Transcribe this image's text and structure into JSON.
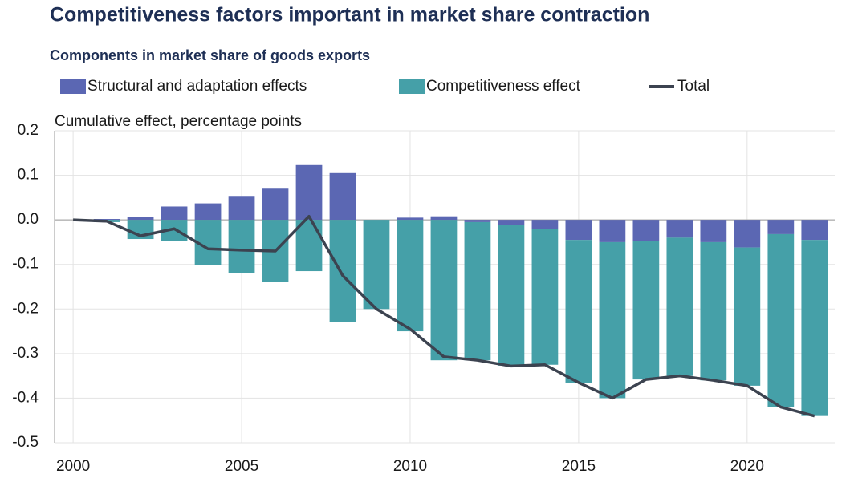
{
  "chart_data": {
    "type": "bar",
    "stacked": true,
    "title": "Competitiveness factors important in market share contraction",
    "subtitle": "Components in market share of goods exports",
    "y_label": "Cumulative effect, percentage points",
    "x": [
      2000,
      2001,
      2002,
      2003,
      2004,
      2005,
      2006,
      2007,
      2008,
      2009,
      2010,
      2011,
      2012,
      2013,
      2014,
      2015,
      2016,
      2017,
      2018,
      2019,
      2020,
      2021,
      2022
    ],
    "series": [
      {
        "name": "Structural and adaptation effects",
        "type": "bar",
        "color": "#5b67b3",
        "values": [
          0,
          0.002,
          0.007,
          0.03,
          0.037,
          0.052,
          0.07,
          0.123,
          0.105,
          0,
          0.005,
          0.008,
          -0.005,
          -0.012,
          -0.02,
          -0.045,
          -0.05,
          -0.048,
          -0.04,
          -0.05,
          -0.062,
          -0.032,
          -0.045
        ]
      },
      {
        "name": "Competitiveness effect",
        "type": "bar",
        "color": "#45a0a8",
        "values": [
          0,
          -0.005,
          -0.043,
          -0.048,
          -0.102,
          -0.12,
          -0.14,
          -0.115,
          -0.23,
          -0.2,
          -0.25,
          -0.315,
          -0.31,
          -0.315,
          -0.305,
          -0.32,
          -0.35,
          -0.31,
          -0.31,
          -0.31,
          -0.31,
          -0.388,
          -0.395
        ]
      },
      {
        "name": "Total",
        "type": "line",
        "color": "#3c4350",
        "values": [
          0,
          -0.003,
          -0.036,
          -0.02,
          -0.065,
          -0.068,
          -0.07,
          0.008,
          -0.125,
          -0.2,
          -0.245,
          -0.307,
          -0.315,
          -0.328,
          -0.325,
          -0.365,
          -0.4,
          -0.358,
          -0.35,
          -0.36,
          -0.372,
          -0.42,
          -0.44
        ]
      }
    ],
    "xlim": [
      1999.45,
      2022.6
    ],
    "xticks": [
      2000,
      2005,
      2010,
      2015,
      2020
    ],
    "ylim": [
      -0.5,
      0.2
    ],
    "yticks": [
      0.2,
      0.1,
      {
        "value": 0,
        "label": "0.0"
      },
      -0.1,
      -0.2,
      -0.3,
      -0.4,
      -0.5
    ],
    "grid": true,
    "bar_width": 0.78
  }
}
